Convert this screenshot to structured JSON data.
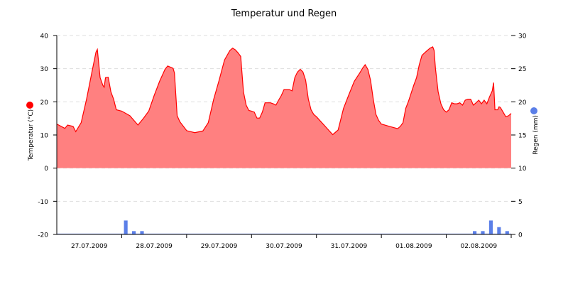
{
  "chart_data": {
    "type": "area+bar",
    "title": "Temperatur und Regen",
    "x_start": "2009-07-27T00:00",
    "x_end": "2009-08-03T00:00",
    "x_tick_labels": [
      "27.07.2009",
      "28.07.2009",
      "29.07.2009",
      "30.07.2009",
      "31.07.2009",
      "01.08.2009",
      "02.08.2009"
    ],
    "grid": true,
    "y_left": {
      "label": "Temperatur (°C)",
      "range": [
        -20,
        40
      ],
      "ticks": [
        40,
        30,
        20,
        10,
        0,
        -10,
        -20
      ]
    },
    "y_right": {
      "label": "Regen (mm)",
      "range": [
        0,
        30
      ],
      "ticks": [
        30,
        25,
        20,
        15,
        10,
        5,
        0
      ]
    },
    "series": [
      {
        "name": "Temperatur (°C)",
        "type": "area",
        "axis": "left",
        "color": "#ff0000",
        "fill": "#ff8080",
        "legend_marker": "left",
        "points": [
          [
            "2009-07-27T00:00",
            13.3
          ],
          [
            "2009-07-27T03:00",
            12.0
          ],
          [
            "2009-07-27T04:00",
            13.0
          ],
          [
            "2009-07-27T06:00",
            12.6
          ],
          [
            "2009-07-27T07:00",
            11.0
          ],
          [
            "2009-07-27T09:00",
            13.7
          ],
          [
            "2009-07-27T11:00",
            20.8
          ],
          [
            "2009-07-27T13:00",
            29.0
          ],
          [
            "2009-07-27T14:30",
            35.0
          ],
          [
            "2009-07-27T15:00",
            35.8
          ],
          [
            "2009-07-27T16:00",
            27.3
          ],
          [
            "2009-07-27T17:00",
            25.0
          ],
          [
            "2009-07-27T17:30",
            24.4
          ],
          [
            "2009-07-27T18:00",
            27.3
          ],
          [
            "2009-07-27T19:00",
            27.4
          ],
          [
            "2009-07-27T20:00",
            23.0
          ],
          [
            "2009-07-27T21:00",
            20.8
          ],
          [
            "2009-07-27T22:00",
            17.6
          ],
          [
            "2009-07-28T00:00",
            17.2
          ],
          [
            "2009-07-28T03:00",
            15.8
          ],
          [
            "2009-07-28T06:00",
            13.0
          ],
          [
            "2009-07-28T08:00",
            15.0
          ],
          [
            "2009-07-28T10:00",
            17.2
          ],
          [
            "2009-07-28T12:00",
            21.9
          ],
          [
            "2009-07-28T14:00",
            26.2
          ],
          [
            "2009-07-28T16:00",
            29.8
          ],
          [
            "2009-07-28T17:00",
            30.8
          ],
          [
            "2009-07-28T19:00",
            30.1
          ],
          [
            "2009-07-28T19:30",
            28.7
          ],
          [
            "2009-07-28T20:30",
            15.8
          ],
          [
            "2009-07-28T21:30",
            14.0
          ],
          [
            "2009-07-29T00:00",
            11.3
          ],
          [
            "2009-07-29T03:00",
            10.7
          ],
          [
            "2009-07-29T06:00",
            11.2
          ],
          [
            "2009-07-29T08:00",
            13.7
          ],
          [
            "2009-07-29T10:00",
            20.8
          ],
          [
            "2009-07-29T12:00",
            26.5
          ],
          [
            "2009-07-29T14:00",
            32.6
          ],
          [
            "2009-07-29T16:00",
            35.5
          ],
          [
            "2009-07-29T17:00",
            36.2
          ],
          [
            "2009-07-29T18:00",
            35.7
          ],
          [
            "2009-07-29T19:00",
            34.8
          ],
          [
            "2009-07-29T20:00",
            33.7
          ],
          [
            "2009-07-29T21:00",
            23.0
          ],
          [
            "2009-07-29T22:00",
            19.0
          ],
          [
            "2009-07-29T23:00",
            17.4
          ],
          [
            "2009-07-30T00:00",
            17.2
          ],
          [
            "2009-07-30T01:00",
            16.9
          ],
          [
            "2009-07-30T02:00",
            15.1
          ],
          [
            "2009-07-30T03:00",
            15.1
          ],
          [
            "2009-07-30T04:00",
            16.9
          ],
          [
            "2009-07-30T05:00",
            19.7
          ],
          [
            "2009-07-30T07:00",
            19.7
          ],
          [
            "2009-07-30T08:00",
            19.4
          ],
          [
            "2009-07-30T09:00",
            19.0
          ],
          [
            "2009-07-30T10:00",
            20.5
          ],
          [
            "2009-07-30T11:00",
            21.9
          ],
          [
            "2009-07-30T12:00",
            23.7
          ],
          [
            "2009-07-30T14:00",
            23.7
          ],
          [
            "2009-07-30T15:00",
            23.3
          ],
          [
            "2009-07-30T16:00",
            27.3
          ],
          [
            "2009-07-30T17:00",
            29.0
          ],
          [
            "2009-07-30T18:00",
            29.8
          ],
          [
            "2009-07-30T19:00",
            29.0
          ],
          [
            "2009-07-30T20:00",
            26.5
          ],
          [
            "2009-07-30T21:00",
            20.8
          ],
          [
            "2009-07-30T22:00",
            17.6
          ],
          [
            "2009-07-30T23:00",
            16.2
          ],
          [
            "2009-07-31T00:00",
            15.5
          ],
          [
            "2009-07-31T02:00",
            13.7
          ],
          [
            "2009-07-31T04:00",
            11.9
          ],
          [
            "2009-07-31T06:00",
            10.1
          ],
          [
            "2009-07-31T08:00",
            11.5
          ],
          [
            "2009-07-31T10:00",
            18.0
          ],
          [
            "2009-07-31T12:00",
            22.2
          ],
          [
            "2009-07-31T14:00",
            26.2
          ],
          [
            "2009-07-31T16:00",
            28.7
          ],
          [
            "2009-07-31T17:00",
            30.1
          ],
          [
            "2009-07-31T18:00",
            31.2
          ],
          [
            "2009-07-31T19:00",
            29.8
          ],
          [
            "2009-07-31T20:00",
            26.5
          ],
          [
            "2009-07-31T21:00",
            20.8
          ],
          [
            "2009-07-31T22:00",
            16.2
          ],
          [
            "2009-07-31T23:00",
            14.4
          ],
          [
            "2009-08-01T00:00",
            13.3
          ],
          [
            "2009-08-01T03:00",
            12.6
          ],
          [
            "2009-08-01T06:00",
            11.9
          ],
          [
            "2009-08-01T07:00",
            12.6
          ],
          [
            "2009-08-01T08:00",
            13.7
          ],
          [
            "2009-08-01T09:00",
            18.0
          ],
          [
            "2009-08-01T10:00",
            20.1
          ],
          [
            "2009-08-01T12:00",
            25.1
          ],
          [
            "2009-08-01T13:00",
            27.3
          ],
          [
            "2009-08-01T14:00",
            31.2
          ],
          [
            "2009-08-01T15:00",
            34.0
          ],
          [
            "2009-08-01T16:00",
            34.8
          ],
          [
            "2009-08-01T17:00",
            35.5
          ],
          [
            "2009-08-01T18:00",
            36.2
          ],
          [
            "2009-08-01T19:00",
            36.6
          ],
          [
            "2009-08-01T19:30",
            35.5
          ],
          [
            "2009-08-01T20:00",
            30.1
          ],
          [
            "2009-08-01T21:00",
            23.0
          ],
          [
            "2009-08-01T22:00",
            19.4
          ],
          [
            "2009-08-01T23:00",
            17.6
          ],
          [
            "2009-08-02T00:00",
            16.9
          ],
          [
            "2009-08-02T01:00",
            17.6
          ],
          [
            "2009-08-02T02:00",
            19.7
          ],
          [
            "2009-08-02T03:00",
            19.4
          ],
          [
            "2009-08-02T04:00",
            19.4
          ],
          [
            "2009-08-02T05:00",
            19.7
          ],
          [
            "2009-08-02T06:00",
            19.0
          ],
          [
            "2009-08-02T07:00",
            20.5
          ],
          [
            "2009-08-02T08:00",
            20.8
          ],
          [
            "2009-08-02T09:00",
            20.8
          ],
          [
            "2009-08-02T10:00",
            19.0
          ],
          [
            "2009-08-02T11:00",
            19.7
          ],
          [
            "2009-08-02T12:00",
            20.5
          ],
          [
            "2009-08-02T13:00",
            19.4
          ],
          [
            "2009-08-02T14:00",
            20.5
          ],
          [
            "2009-08-02T15:00",
            19.4
          ],
          [
            "2009-08-02T16:00",
            21.5
          ],
          [
            "2009-08-02T17:00",
            23.3
          ],
          [
            "2009-08-02T17:30",
            25.8
          ],
          [
            "2009-08-02T18:00",
            17.6
          ],
          [
            "2009-08-02T19:00",
            17.6
          ],
          [
            "2009-08-02T19:30",
            18.5
          ],
          [
            "2009-08-02T20:00",
            18.3
          ],
          [
            "2009-08-02T21:00",
            16.9
          ],
          [
            "2009-08-02T22:00",
            15.5
          ],
          [
            "2009-08-02T23:00",
            15.8
          ],
          [
            "2009-08-03T00:00",
            16.5
          ]
        ]
      },
      {
        "name": "Regen (mm)",
        "type": "bar",
        "axis": "right",
        "color": "#5b7fe8",
        "legend_marker": "right",
        "bars": [
          [
            "2009-07-28T00:00",
            "2009-07-28T03:00",
            2.1
          ],
          [
            "2009-07-28T03:00",
            "2009-07-28T06:00",
            0.5
          ],
          [
            "2009-07-28T06:00",
            "2009-07-28T09:00",
            0.5
          ],
          [
            "2009-08-02T09:00",
            "2009-08-02T12:00",
            0.5
          ],
          [
            "2009-08-02T12:00",
            "2009-08-02T15:00",
            0.5
          ],
          [
            "2009-08-02T15:00",
            "2009-08-02T18:00",
            2.1
          ],
          [
            "2009-08-02T18:00",
            "2009-08-02T21:00",
            1.1
          ],
          [
            "2009-08-02T21:00",
            "2009-08-03T00:00",
            0.5
          ]
        ]
      }
    ]
  }
}
